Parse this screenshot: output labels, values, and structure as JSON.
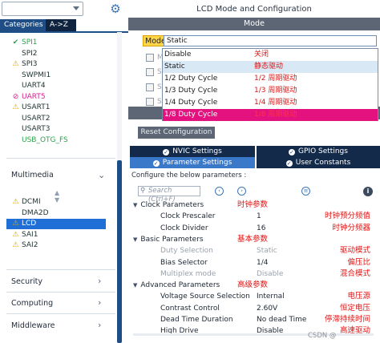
{
  "left": {
    "tabs": {
      "categories": "Categories",
      "az": "A->Z"
    },
    "peripherals_top": [
      {
        "label": "SPI1",
        "status": "ok",
        "color": "green"
      },
      {
        "label": "SPI2",
        "status": "none",
        "color": "normal"
      },
      {
        "label": "SPI3",
        "status": "warn",
        "color": "normal"
      },
      {
        "label": "SWPMI1",
        "status": "none",
        "color": "normal"
      },
      {
        "label": "UART4",
        "status": "none",
        "color": "normal"
      },
      {
        "label": "UART5",
        "status": "no",
        "color": "pink"
      },
      {
        "label": "USART1",
        "status": "warn",
        "color": "normal"
      },
      {
        "label": "USART2",
        "status": "none",
        "color": "normal"
      },
      {
        "label": "USART3",
        "status": "none",
        "color": "normal"
      },
      {
        "label": "USB_OTG_FS",
        "status": "none",
        "color": "green"
      }
    ],
    "category_multimedia": "Multimedia",
    "peripherals_multimedia": [
      {
        "label": "DCMI",
        "status": "warn"
      },
      {
        "label": "DMA2D",
        "status": "none"
      },
      {
        "label": "LCD",
        "status": "warn",
        "selected": true
      },
      {
        "label": "SAI1",
        "status": "warn"
      },
      {
        "label": "SAI2",
        "status": "warn"
      }
    ],
    "category_security": "Security",
    "category_computing": "Computing",
    "category_middleware": "Middleware"
  },
  "right": {
    "title": "LCD Mode and Configuration",
    "mode_section": "Mode",
    "mode_label": "Mode",
    "mode_value": "Static",
    "checkbox_labels": [
      "M",
      "SE",
      "SE",
      "SE"
    ],
    "dropdown": [
      {
        "en": "Disable",
        "cn": "关闭"
      },
      {
        "en": "Static",
        "cn": "静态驱动"
      },
      {
        "en": "1/2 Duty Cycle",
        "cn": "1/2 周期驱动"
      },
      {
        "en": "1/3 Duty Cycle",
        "cn": "1/3 周期驱动"
      },
      {
        "en": "1/4 Duty Cycle",
        "cn": "1/4 周期驱动"
      },
      {
        "en": "1/8 Duty Cycle",
        "cn": "1/8 周期驱动"
      }
    ],
    "reset_button": "Reset Configuration",
    "tabs": {
      "nvic": "NVIC Settings",
      "gpio": "GPIO Settings",
      "parameter": "Parameter Settings",
      "user": "User Constants"
    },
    "configure_label": "Configure the below parameters :",
    "search_placeholder": "Search (Ctrl+F)",
    "groups": [
      {
        "name": "Clock Parameters",
        "annotation": "时钟参数",
        "params": [
          {
            "name": "Clock Prescaler",
            "value": "1",
            "annotation": "时钟预分频值",
            "dim": false
          },
          {
            "name": "Clock Divider",
            "value": "16",
            "annotation": "时钟分频器",
            "dim": false
          }
        ]
      },
      {
        "name": "Basic Parameters",
        "annotation": "基本参数",
        "params": [
          {
            "name": "Duty Selection",
            "value": "Static",
            "annotation": "驱动模式",
            "dim": true
          },
          {
            "name": "Bias Selector",
            "value": "1/4",
            "annotation": "偏压比",
            "dim": false
          },
          {
            "name": "Multiplex mode",
            "value": "Disable",
            "annotation": "混合模式",
            "dim": true
          }
        ]
      },
      {
        "name": "Advanced Parameters",
        "annotation": "高级参数",
        "params": [
          {
            "name": "Voltage Source Selection",
            "value": "Internal",
            "annotation": "电压源",
            "dim": false
          },
          {
            "name": "Contrast Control",
            "value": "2.60V",
            "annotation": "恒定电压",
            "dim": false
          },
          {
            "name": "Dead Time Duration",
            "value": "No dead Time",
            "annotation": "停滞持续时间",
            "dim": false
          },
          {
            "name": "High Drive",
            "value": "Disable",
            "annotation": "高速驱动",
            "dim": false
          }
        ]
      }
    ],
    "watermark": "CSDN @"
  },
  "colors": {
    "accent": "#1f4e86",
    "selected_item": "#e3127f",
    "annotation": "#e01414",
    "ok": "#2da34b",
    "warn": "#e0a800"
  }
}
